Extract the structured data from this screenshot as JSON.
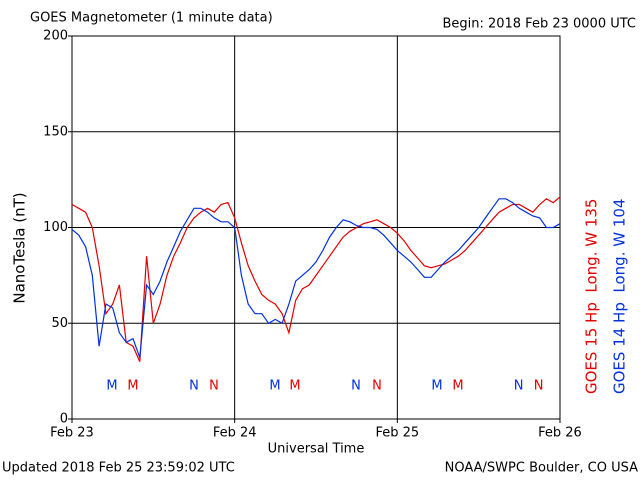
{
  "chart_data": {
    "type": "line",
    "title": "GOES Magnetometer (1 minute data)",
    "subtitle": "Begin:  2018 Feb 23 0000 UTC",
    "y_label": "NanoTesla (nT)",
    "x_label": "Universal Time",
    "footer_left": "Updated 2018 Feb 25 23:59:02 UTC",
    "footer_right": "NOAA/SWPC Boulder, CO USA",
    "xlim": [
      0,
      72
    ],
    "xticks": [
      {
        "value": 0,
        "label": "Feb 23"
      },
      {
        "value": 24,
        "label": "Feb 24"
      },
      {
        "value": 48,
        "label": "Feb 25"
      },
      {
        "value": 72,
        "label": "Feb 26"
      }
    ],
    "ylim": [
      0,
      200
    ],
    "yticks": [
      0,
      50,
      100,
      150,
      200
    ],
    "grid": true,
    "x": [
      0,
      1,
      2,
      3,
      4,
      5,
      6,
      7,
      8,
      9,
      10,
      11,
      12,
      13,
      14,
      15,
      16,
      17,
      18,
      19,
      20,
      21,
      22,
      23,
      24,
      25,
      26,
      27,
      28,
      29,
      30,
      31,
      32,
      33,
      34,
      35,
      36,
      37,
      38,
      39,
      40,
      41,
      42,
      43,
      44,
      45,
      46,
      47,
      48,
      49,
      50,
      51,
      52,
      53,
      54,
      55,
      56,
      57,
      58,
      59,
      60,
      61,
      62,
      63,
      64,
      65,
      66,
      67,
      68,
      69,
      70,
      71,
      72
    ],
    "series": [
      {
        "name": "GOES 15 Hp  Long. W 135",
        "color": "#e00000",
        "values": [
          112,
          110,
          108,
          100,
          80,
          55,
          60,
          70,
          40,
          38,
          30,
          85,
          50,
          60,
          75,
          85,
          92,
          100,
          105,
          108,
          110,
          108,
          112,
          113,
          105,
          92,
          80,
          72,
          65,
          62,
          60,
          55,
          45,
          62,
          68,
          70,
          75,
          80,
          85,
          90,
          95,
          98,
          100,
          102,
          103,
          104,
          102,
          100,
          97,
          93,
          88,
          84,
          80,
          79,
          80,
          81,
          83,
          85,
          88,
          92,
          96,
          100,
          104,
          108,
          110,
          112,
          112,
          110,
          108,
          112,
          115,
          113,
          116
        ]
      },
      {
        "name": "GOES 14 Hp  Long. W 104",
        "color": "#0030e0",
        "values": [
          99,
          96,
          90,
          75,
          38,
          60,
          58,
          45,
          40,
          42,
          32,
          70,
          65,
          72,
          82,
          90,
          98,
          104,
          110,
          110,
          108,
          105,
          103,
          103,
          100,
          75,
          60,
          55,
          55,
          50,
          52,
          50,
          60,
          72,
          75,
          78,
          82,
          88,
          95,
          100,
          104,
          103,
          101,
          100,
          100,
          99,
          96,
          92,
          88,
          85,
          82,
          78,
          74,
          74,
          78,
          82,
          85,
          88,
          92,
          96,
          100,
          105,
          110,
          115,
          115,
          113,
          110,
          108,
          106,
          105,
          100,
          100,
          102
        ]
      }
    ],
    "markers": [
      {
        "label": "M",
        "x": 5.9,
        "series": 1
      },
      {
        "label": "M",
        "x": 9.0,
        "series": 0
      },
      {
        "label": "N",
        "x": 18.0,
        "series": 1
      },
      {
        "label": "N",
        "x": 20.95,
        "series": 0
      },
      {
        "label": "M",
        "x": 29.95,
        "series": 1
      },
      {
        "label": "M",
        "x": 32.9,
        "series": 0
      },
      {
        "label": "N",
        "x": 41.9,
        "series": 1
      },
      {
        "label": "N",
        "x": 45.0,
        "series": 0
      },
      {
        "label": "M",
        "x": 53.85,
        "series": 1
      },
      {
        "label": "M",
        "x": 56.95,
        "series": 0
      },
      {
        "label": "N",
        "x": 65.9,
        "series": 1
      },
      {
        "label": "N",
        "x": 68.85,
        "series": 0
      }
    ]
  }
}
